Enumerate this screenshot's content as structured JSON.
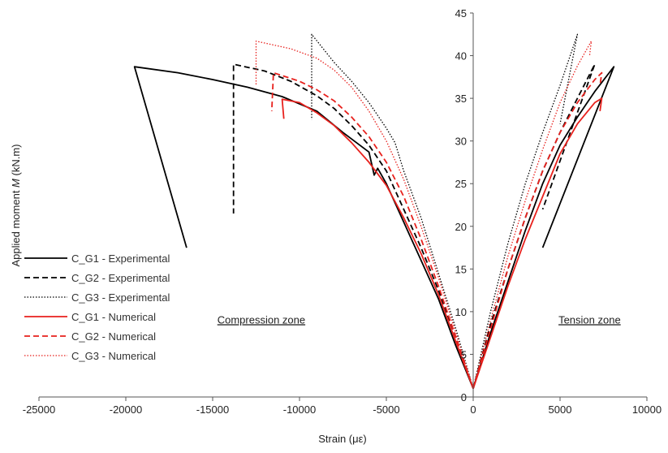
{
  "chart_data": {
    "type": "line",
    "title": "",
    "xlabel": "Strain (με)",
    "ylabel_prefix": "Applied moment ",
    "ylabel_var": "M",
    "ylabel_suffix": " (kN.m)",
    "xlim": [
      -25000,
      10000
    ],
    "ylim": [
      0,
      45
    ],
    "xticks": [
      -25000,
      -20000,
      -15000,
      -10000,
      -5000,
      0,
      5000,
      10000
    ],
    "yticks": [
      0,
      5,
      10,
      15,
      20,
      25,
      30,
      35,
      40,
      45
    ],
    "grid": false,
    "legend_position": "bottom-left",
    "annotations": [
      {
        "text": "Compression zone",
        "x": -12200,
        "y": 9
      },
      {
        "text": "Tension zone",
        "x": 6700,
        "y": 9
      }
    ],
    "series": [
      {
        "name": "C_G1 - Experimental",
        "color": "#000000",
        "style": "solid",
        "points": [
          [
            0,
            1
          ],
          [
            -1000,
            6
          ],
          [
            -2000,
            11.5
          ],
          [
            -3000,
            16
          ],
          [
            -4000,
            20.5
          ],
          [
            -5000,
            25
          ],
          [
            -5500,
            26.8
          ],
          [
            -5700,
            26
          ],
          [
            -6000,
            28.7
          ],
          [
            -7500,
            31
          ],
          [
            -9000,
            33.5
          ],
          [
            -11000,
            35.2
          ],
          [
            -13000,
            36.3
          ],
          [
            -15000,
            37.2
          ],
          [
            -17000,
            38
          ],
          [
            -19500,
            38.7
          ],
          [
            -16500,
            17.5
          ],
          null,
          [
            0,
            1
          ],
          [
            1000,
            7.5
          ],
          [
            2000,
            13.5
          ],
          [
            3000,
            19.5
          ],
          [
            4000,
            25
          ],
          [
            5000,
            29.5
          ],
          [
            6000,
            32.8
          ],
          [
            7000,
            35.8
          ],
          [
            8100,
            38.7
          ],
          [
            4000,
            17.5
          ]
        ]
      },
      {
        "name": "C_G2 - Experimental",
        "color": "#000000",
        "style": "dashed",
        "points": [
          [
            0,
            1
          ],
          [
            -1000,
            7
          ],
          [
            -2000,
            12.5
          ],
          [
            -3000,
            17.5
          ],
          [
            -4000,
            22
          ],
          [
            -5000,
            26.5
          ],
          [
            -6000,
            29.5
          ],
          [
            -7000,
            31.8
          ],
          [
            -8000,
            33.8
          ],
          [
            -9000,
            35.3
          ],
          [
            -10500,
            37
          ],
          [
            -12000,
            38.2
          ],
          [
            -13800,
            39
          ],
          [
            -13800,
            21.5
          ],
          null,
          [
            0,
            1
          ],
          [
            1000,
            8.5
          ],
          [
            2000,
            15
          ],
          [
            3000,
            21
          ],
          [
            4000,
            26.5
          ],
          [
            5000,
            31
          ],
          [
            6000,
            35
          ],
          [
            7000,
            39
          ],
          [
            4000,
            22
          ]
        ]
      },
      {
        "name": "C_G3 - Experimental",
        "color": "#000000",
        "style": "dotted",
        "points": [
          [
            0,
            1
          ],
          [
            -1000,
            8
          ],
          [
            -2000,
            14.5
          ],
          [
            -3000,
            21
          ],
          [
            -4000,
            26.5
          ],
          [
            -4500,
            29.8
          ],
          [
            -5000,
            31.5
          ],
          [
            -6000,
            34.5
          ],
          [
            -7000,
            37
          ],
          [
            -8000,
            39.2
          ],
          [
            -9300,
            42.5
          ],
          [
            -9300,
            32.5
          ],
          null,
          [
            0,
            1
          ],
          [
            1000,
            10
          ],
          [
            2000,
            18
          ],
          [
            3000,
            25
          ],
          [
            4000,
            31
          ],
          [
            5000,
            36.5
          ],
          [
            6000,
            42.5
          ],
          [
            5000,
            32
          ]
        ]
      },
      {
        "name": "C_G1 - Numerical",
        "color": "#e8211d",
        "style": "solid",
        "points": [
          [
            0,
            1
          ],
          [
            -1000,
            6.5
          ],
          [
            -2000,
            12
          ],
          [
            -3000,
            16.8
          ],
          [
            -4000,
            21
          ],
          [
            -5000,
            24.8
          ],
          [
            -6000,
            27.5
          ],
          [
            -7000,
            29.8
          ],
          [
            -8000,
            31.8
          ],
          [
            -9000,
            33.3
          ],
          [
            -10000,
            34.5
          ],
          [
            -11000,
            34.9
          ],
          [
            -10900,
            32.6
          ],
          null,
          [
            0,
            1
          ],
          [
            1000,
            7
          ],
          [
            2000,
            13
          ],
          [
            3000,
            18.5
          ],
          [
            4000,
            23.5
          ],
          [
            5000,
            28.5
          ],
          [
            6000,
            32
          ],
          [
            7000,
            34.5
          ],
          [
            7400,
            35
          ],
          [
            7300,
            33.5
          ]
        ]
      },
      {
        "name": "C_G2 - Numerical",
        "color": "#e8211d",
        "style": "dashed",
        "points": [
          [
            0,
            1
          ],
          [
            -1000,
            7
          ],
          [
            -2000,
            13
          ],
          [
            -3000,
            18.5
          ],
          [
            -4000,
            23.5
          ],
          [
            -5000,
            27.5
          ],
          [
            -6000,
            30.5
          ],
          [
            -7000,
            32.8
          ],
          [
            -8000,
            34.7
          ],
          [
            -9000,
            36
          ],
          [
            -10000,
            37
          ],
          [
            -11500,
            38
          ],
          [
            -11600,
            33.5
          ],
          null,
          [
            0,
            1
          ],
          [
            1000,
            8
          ],
          [
            2000,
            15
          ],
          [
            3000,
            21
          ],
          [
            4000,
            26.5
          ],
          [
            5000,
            31
          ],
          [
            6000,
            34.5
          ],
          [
            7000,
            37.2
          ],
          [
            7400,
            38
          ],
          [
            7300,
            36.5
          ]
        ]
      },
      {
        "name": "C_G3 - Numerical",
        "color": "#e8211d",
        "style": "dotted",
        "points": [
          [
            0,
            1
          ],
          [
            -1000,
            7.5
          ],
          [
            -2000,
            14
          ],
          [
            -3000,
            20
          ],
          [
            -4000,
            25.5
          ],
          [
            -5000,
            30
          ],
          [
            -6000,
            33.5
          ],
          [
            -7000,
            36.3
          ],
          [
            -8000,
            38.3
          ],
          [
            -9000,
            39.7
          ],
          [
            -10500,
            40.8
          ],
          [
            -12500,
            41.7
          ],
          [
            -12500,
            36.5
          ],
          null,
          [
            0,
            1
          ],
          [
            1000,
            9
          ],
          [
            2000,
            16.5
          ],
          [
            3000,
            23
          ],
          [
            4000,
            29
          ],
          [
            5000,
            34.5
          ],
          [
            6000,
            38.8
          ],
          [
            6800,
            41.7
          ],
          [
            6700,
            40
          ]
        ]
      }
    ]
  }
}
